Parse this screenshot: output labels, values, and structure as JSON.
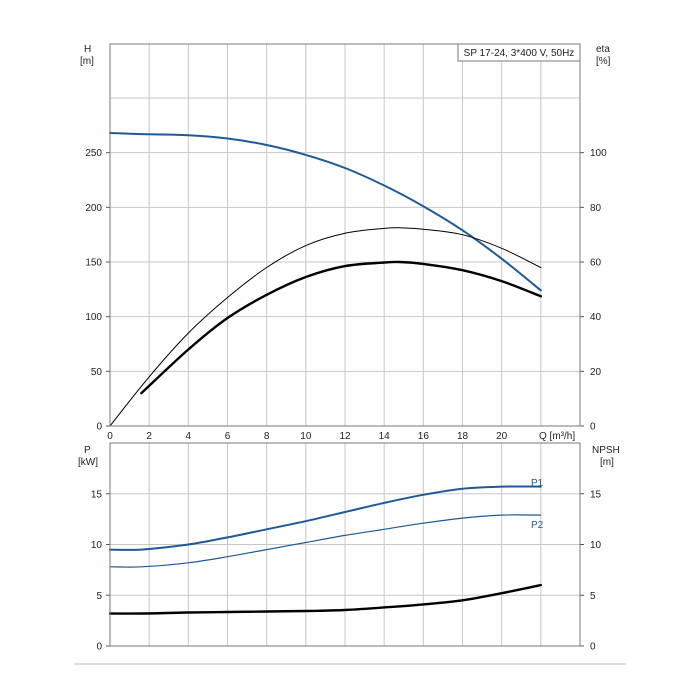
{
  "chart_data": [
    {
      "type": "line",
      "title": "SP 17-24, 3*400 V, 50Hz",
      "xlabel": "Q [m³/h]",
      "x_ticks": [
        "0",
        "2",
        "4",
        "6",
        "8",
        "10",
        "12",
        "14",
        "16",
        "18",
        "20"
      ],
      "xlim": [
        0,
        24
      ],
      "left_axis": {
        "label_line1": "H",
        "label_line2": "[m]",
        "ylim": [
          0,
          300
        ],
        "ticks": [
          "0",
          "50",
          "100",
          "150",
          "200",
          "250"
        ]
      },
      "right_axis": {
        "label_line1": "eta",
        "label_line2": "[%]",
        "ylim": [
          0,
          120
        ],
        "ticks": [
          "0",
          "20",
          "40",
          "60",
          "80",
          "100"
        ]
      },
      "grid": true,
      "series": [
        {
          "axis": "left",
          "color": "#1f5a96",
          "width": 2,
          "x": [
            0,
            1.6,
            4,
            6,
            8,
            10,
            12,
            14,
            16,
            18,
            20,
            22
          ],
          "y": [
            268,
            267,
            266,
            263,
            257,
            248,
            236,
            220,
            201,
            179,
            153,
            124
          ]
        },
        {
          "axis": "right",
          "color": "#000000",
          "width": 1,
          "x": [
            0,
            2,
            4,
            6,
            8,
            10,
            12,
            14,
            14.8,
            16,
            18,
            20,
            22
          ],
          "y": [
            0,
            18,
            34,
            47,
            58,
            66,
            70.5,
            72.3,
            72.5,
            72,
            70,
            65,
            58
          ]
        },
        {
          "axis": "right",
          "color": "#000000",
          "width": 2.4,
          "x": [
            1.6,
            4,
            6,
            8,
            10,
            12,
            14,
            14.8,
            16,
            18,
            20,
            22
          ],
          "y": [
            12,
            28,
            39.5,
            48,
            54.5,
            58.5,
            59.8,
            60,
            59.3,
            57,
            53,
            47.5
          ]
        }
      ]
    },
    {
      "type": "line",
      "xlim": [
        0,
        24
      ],
      "left_axis": {
        "label_line1": "P",
        "label_line2": "[kW]",
        "ylim": [
          0,
          20
        ],
        "ticks": [
          "0",
          "5",
          "10",
          "15"
        ]
      },
      "right_axis": {
        "label_line1": "NPSH",
        "label_line2": "[m]",
        "ylim": [
          0,
          20
        ],
        "ticks": [
          "0",
          "5",
          "10",
          "15"
        ]
      },
      "grid": true,
      "series": [
        {
          "name": "P1",
          "axis": "left",
          "color": "#1f5a96",
          "width": 2,
          "x": [
            0,
            1.6,
            4,
            6,
            8,
            10,
            12,
            14,
            16,
            18,
            20,
            22
          ],
          "y": [
            9.5,
            9.5,
            10,
            10.7,
            11.5,
            12.3,
            13.2,
            14.1,
            14.9,
            15.5,
            15.7,
            15.7
          ]
        },
        {
          "name": "P2",
          "axis": "left",
          "color": "#1f5a96",
          "width": 1.2,
          "x": [
            0,
            1.6,
            4,
            6,
            8,
            10,
            12,
            14,
            16,
            18,
            20,
            22
          ],
          "y": [
            7.8,
            7.8,
            8.2,
            8.8,
            9.5,
            10.2,
            10.9,
            11.5,
            12.1,
            12.6,
            12.9,
            12.9
          ]
        },
        {
          "axis": "right",
          "color": "#000000",
          "width": 2.4,
          "x": [
            0,
            1.6,
            4,
            6,
            8,
            10,
            12,
            14,
            16,
            18,
            20,
            22
          ],
          "y": [
            3.2,
            3.2,
            3.3,
            3.35,
            3.4,
            3.45,
            3.55,
            3.8,
            4.1,
            4.5,
            5.2,
            6.0
          ]
        }
      ]
    }
  ]
}
